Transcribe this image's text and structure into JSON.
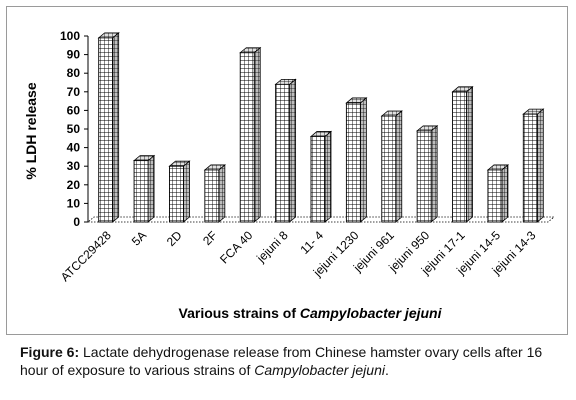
{
  "chart_data": {
    "type": "bar",
    "ylabel": "% LDH release",
    "xlabel_prefix": "Various strains of ",
    "xlabel_italic": "Campylobacter jejuni",
    "ylim": [
      0,
      100
    ],
    "yticks": [
      0,
      10,
      20,
      30,
      40,
      50,
      60,
      70,
      80,
      90,
      100
    ],
    "grid": false,
    "bar_style": "3d-hatched-grid",
    "categories": [
      "ATCC29428",
      "5A",
      "2D",
      "2F",
      "FCA 40",
      "jejuni 8",
      "11- 4",
      "jejuni 1230",
      "jejuni 961",
      "jejuni 950",
      "jejuni 17-1",
      "jejuni 14-5",
      "jejuni 14-3"
    ],
    "values": [
      99,
      33,
      30,
      28,
      91,
      74,
      46,
      64,
      57,
      49,
      70,
      28,
      58
    ]
  },
  "caption": {
    "label": "Figure 6:",
    "text": " Lactate dehydrogenase release from Chinese hamster ovary cells after 16 hour of exposure to various strains of ",
    "italic": "Campylobacter jejuni",
    "end": "."
  }
}
